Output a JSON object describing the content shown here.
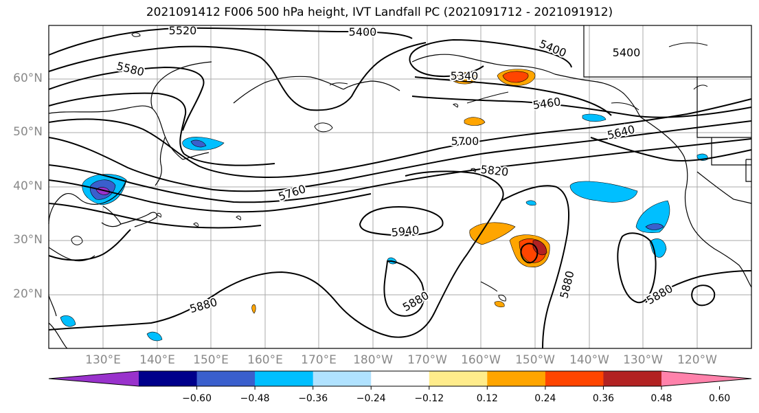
{
  "title": "2021091412 F006 500 hPa height, IVT Landfall PC (2021091712 - 2021091912)",
  "lat_labels": [
    "60°N",
    "50°N",
    "40°N",
    "30°N",
    "20°N"
  ],
  "lon_labels": [
    "130°E",
    "140°E",
    "150°E",
    "160°E",
    "170°E",
    "180°W",
    "170°W",
    "160°W",
    "150°W",
    "140°W",
    "130°W",
    "120°W"
  ],
  "contour_labels": [
    "5520",
    "5400",
    "5400",
    "5400",
    "5580",
    "5340",
    "5460",
    "5640",
    "5700",
    "5820",
    "5760",
    "5940",
    "5880",
    "5880",
    "5880",
    "5880"
  ],
  "colorbar": {
    "ticks": [
      "−0.60",
      "−0.48",
      "−0.36",
      "−0.24",
      "−0.12",
      "0.12",
      "0.24",
      "0.36",
      "0.48",
      "0.60"
    ],
    "colors": [
      "#9932cc",
      "#00008b",
      "#3a5fcd",
      "#00bfff",
      "#b0e2ff",
      "#ffffff",
      "#ffec8b",
      "#ffa500",
      "#ff4500",
      "#b22222",
      "#ff82ab"
    ]
  }
}
